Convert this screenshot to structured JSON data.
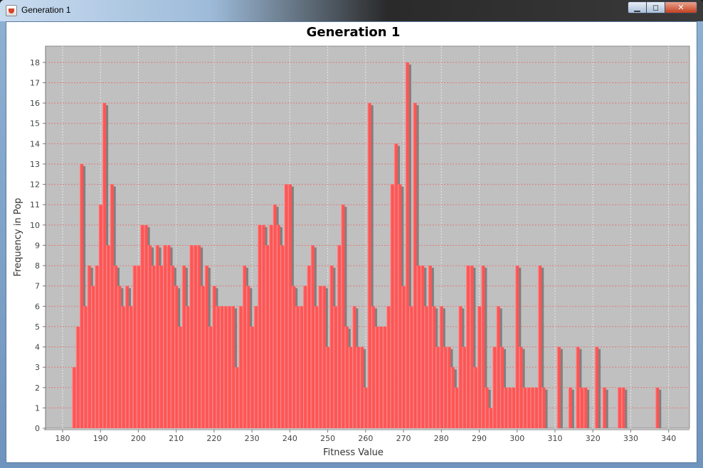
{
  "window": {
    "title": "Generation 1",
    "controls": {
      "minimize": "▁",
      "maximize": "◻",
      "close": "✕"
    }
  },
  "colors": {
    "bar": "#ff5555",
    "bar_light": "#ff9a9a",
    "shadow": "#808080",
    "plot_bg": "#c0c0c0",
    "grid_h": "#e07a7a",
    "grid_v": "#e8e8e8"
  },
  "chart_data": {
    "type": "bar",
    "title": "Generation 1",
    "xlabel": "Fitness Value",
    "ylabel": "Frequency in Pop",
    "xlim": [
      175.5,
      345.5
    ],
    "ylim": [
      0,
      18.8
    ],
    "x_ticks": [
      180,
      190,
      200,
      210,
      220,
      230,
      240,
      250,
      260,
      270,
      280,
      290,
      300,
      310,
      320,
      330,
      340
    ],
    "y_ticks": [
      0,
      1,
      2,
      3,
      4,
      5,
      6,
      7,
      8,
      9,
      10,
      11,
      12,
      13,
      14,
      15,
      16,
      17,
      18
    ],
    "grid": true,
    "legend": "none",
    "series": [
      {
        "x": [
          183,
          184,
          185,
          186,
          187,
          188,
          189,
          190,
          191,
          192,
          193,
          194,
          195,
          196,
          197,
          198,
          199,
          200,
          201,
          202,
          203,
          204,
          205,
          206,
          207,
          208,
          209,
          210,
          211,
          212,
          213,
          214,
          215,
          216,
          217,
          218,
          219,
          220,
          221,
          222,
          223,
          224,
          225,
          226,
          227,
          228,
          229,
          230,
          231,
          232,
          233,
          234,
          235,
          236,
          237,
          238,
          239,
          240,
          241,
          242,
          243,
          244,
          245,
          246,
          247,
          248,
          249,
          250,
          251,
          252,
          253,
          254,
          255,
          256,
          257,
          258,
          259,
          260,
          261,
          262,
          263,
          264,
          265,
          266,
          267,
          268,
          269,
          270,
          271,
          272,
          273,
          274,
          275,
          276,
          277,
          278,
          279,
          280,
          281,
          282,
          283,
          284,
          285,
          286,
          287,
          288,
          289,
          290,
          291,
          292,
          293,
          294,
          295,
          296,
          297,
          298,
          299,
          300,
          301,
          302,
          303,
          304,
          305,
          306,
          307,
          311,
          314,
          316,
          317,
          318,
          321,
          323,
          327,
          328,
          337
        ],
        "values": [
          3,
          5,
          13,
          6,
          8,
          7,
          8,
          11,
          16,
          9,
          12,
          8,
          7,
          6,
          7,
          6,
          8,
          8,
          10,
          10,
          9,
          8,
          9,
          8,
          9,
          9,
          8,
          7,
          5,
          8,
          6,
          9,
          9,
          9,
          7,
          8,
          5,
          7,
          6,
          6,
          6,
          6,
          6,
          3,
          6,
          8,
          7,
          5,
          6,
          10,
          10,
          9,
          10,
          11,
          10,
          9,
          12,
          12,
          7,
          6,
          6,
          7,
          8,
          9,
          6,
          7,
          7,
          4,
          8,
          6,
          9,
          11,
          5,
          4,
          6,
          4,
          4,
          2,
          16,
          6,
          5,
          5,
          5,
          6,
          12,
          14,
          12,
          7,
          18,
          6,
          16,
          8,
          8,
          6,
          8,
          6,
          4,
          6,
          4,
          4,
          3,
          2,
          6,
          4,
          8,
          8,
          3,
          6,
          8,
          2,
          1,
          4,
          6,
          4,
          2,
          2,
          2,
          8,
          4,
          2,
          2,
          2,
          2,
          8,
          2,
          4,
          2,
          4,
          2,
          2,
          4,
          2,
          2,
          2,
          2
        ]
      }
    ]
  }
}
